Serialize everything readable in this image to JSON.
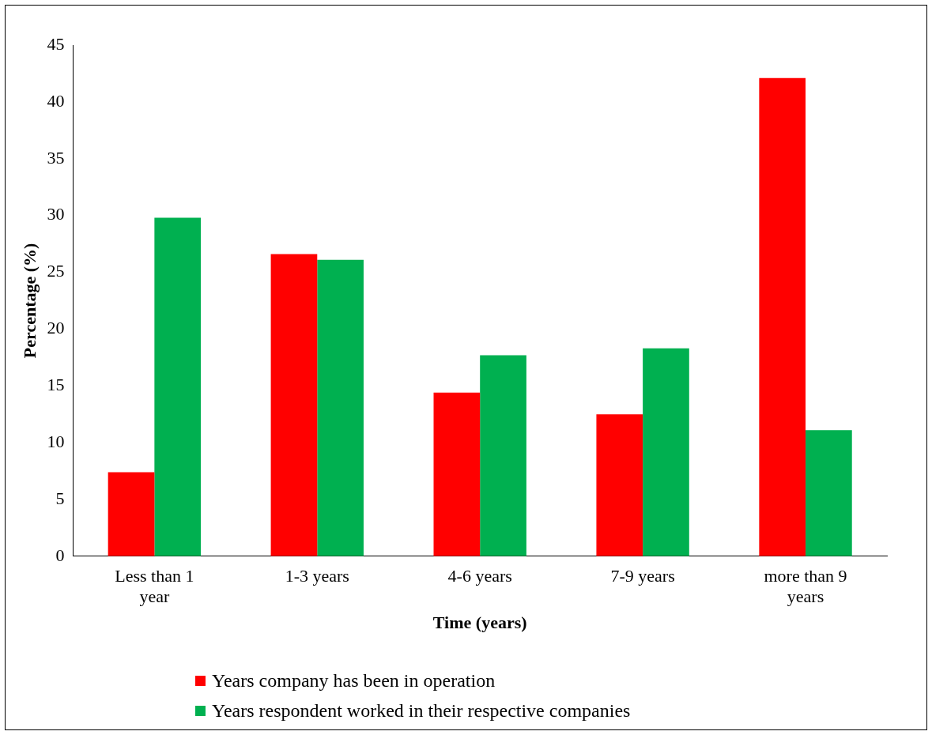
{
  "chart_data": {
    "type": "bar",
    "xlabel": "Time (years)",
    "ylabel": "Percentage (%)",
    "categories": [
      "Less than 1 year",
      "1-3 years",
      "4-6 years",
      "7-9 years",
      "more than 9 years"
    ],
    "series": [
      {
        "name": "Years company has been in operation",
        "color": "#ff0000",
        "values": [
          7.4,
          26.6,
          14.4,
          12.5,
          42.1
        ]
      },
      {
        "name": "Years respondent worked in their respective companies",
        "color": "#00b050",
        "values": [
          29.8,
          26.1,
          17.7,
          18.3,
          11.1
        ]
      }
    ],
    "ylim": [
      0,
      45
    ],
    "yticks": [
      0,
      5,
      10,
      15,
      20,
      25,
      30,
      35,
      40,
      45
    ],
    "grid": false,
    "legend": "bottom"
  }
}
